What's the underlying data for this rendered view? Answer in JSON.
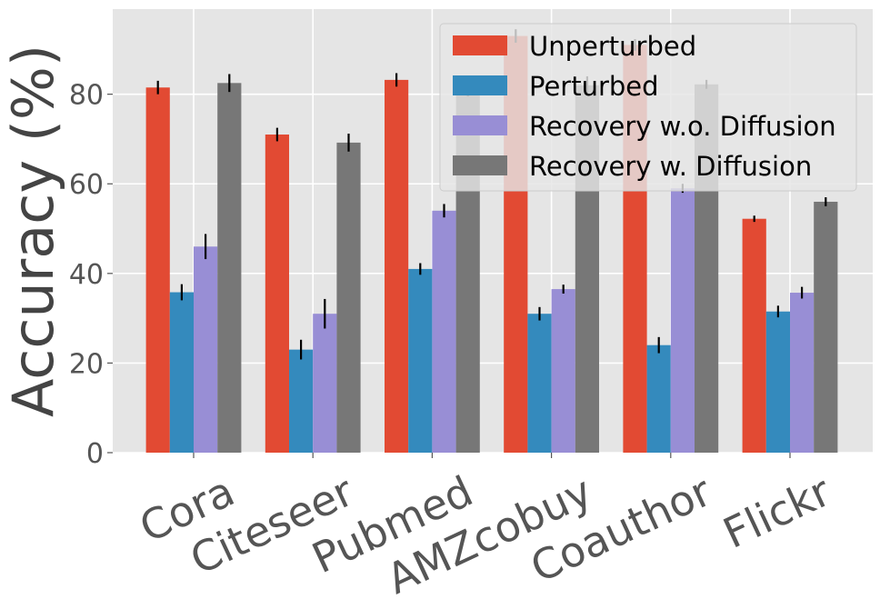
{
  "chart_data": {
    "type": "bar",
    "title": "",
    "xlabel": "",
    "ylabel": "Accuracy (%)",
    "ylim": [
      0,
      99
    ],
    "yticks": [
      0,
      20,
      40,
      60,
      80
    ],
    "grid": true,
    "legend_position": "top-right",
    "categories": [
      "Cora",
      "Citeseer",
      "Pubmed",
      "AMZcobuy",
      "Coauthor",
      "Flickr"
    ],
    "series": [
      {
        "name": "Unperturbed",
        "color": "#E24A33",
        "values": [
          81.5,
          71.0,
          83.2,
          93.0,
          91.0,
          52.2
        ],
        "errors": [
          1.5,
          1.5,
          1.5,
          1.5,
          1.3,
          0.7
        ]
      },
      {
        "name": "Perturbed",
        "color": "#348ABD",
        "values": [
          35.8,
          23.0,
          41.0,
          31.0,
          24.0,
          31.5
        ],
        "errors": [
          1.8,
          2.2,
          1.3,
          1.5,
          1.8,
          1.3
        ]
      },
      {
        "name": "Recovery w.o. Diffusion",
        "color": "#988ED5",
        "values": [
          46.0,
          31.0,
          54.0,
          36.5,
          59.0,
          35.7
        ],
        "errors": [
          2.8,
          3.3,
          1.5,
          1.0,
          1.0,
          1.3
        ]
      },
      {
        "name": "Recovery w. Diffusion",
        "color": "#777777",
        "values": [
          82.5,
          69.2,
          81.5,
          82.0,
          82.2,
          56.0
        ],
        "errors": [
          2.0,
          2.0,
          2.0,
          2.0,
          1.0,
          1.0
        ]
      }
    ]
  }
}
